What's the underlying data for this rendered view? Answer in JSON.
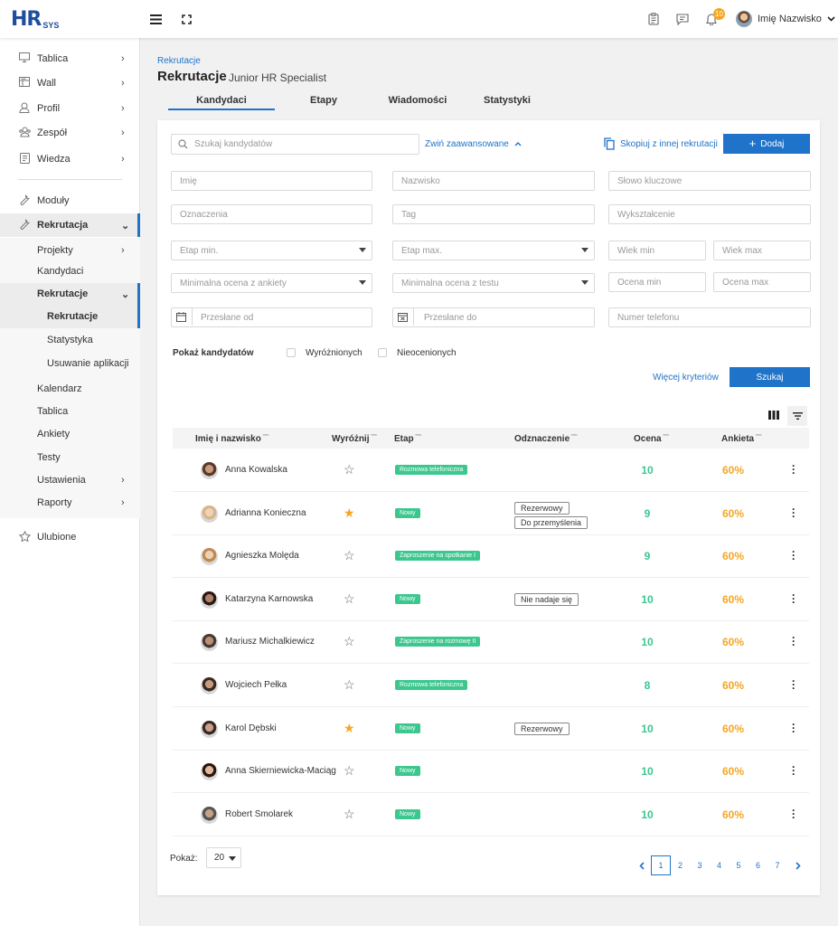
{
  "header": {
    "logo_main": "HR",
    "logo_sub": "SYS",
    "notif_count": "10",
    "user_name": "Imię Nazwisko"
  },
  "sidebar": {
    "items": [
      {
        "label": "Tablica",
        "icon": "monitor-icon"
      },
      {
        "label": "Wall",
        "icon": "wall-icon"
      },
      {
        "label": "Profil",
        "icon": "user-icon"
      },
      {
        "label": "Zespół",
        "icon": "team-icon"
      },
      {
        "label": "Wiedza",
        "icon": "book-icon"
      },
      {
        "label": "Moduły",
        "icon": "wrench-icon"
      },
      {
        "label": "Rekrutacja",
        "icon": "wrench-icon"
      },
      {
        "label": "Projekty"
      },
      {
        "label": "Kandydaci"
      },
      {
        "label": "Rekrutacje"
      },
      {
        "label": "Rekrutacje"
      },
      {
        "label": "Statystyka"
      },
      {
        "label": "Usuwanie aplikacji"
      },
      {
        "label": "Kalendarz"
      },
      {
        "label": "Tablica"
      },
      {
        "label": "Ankiety"
      },
      {
        "label": "Testy"
      },
      {
        "label": "Ustawienia"
      },
      {
        "label": "Raporty"
      },
      {
        "label": "Ulubione",
        "icon": "star-icon"
      }
    ]
  },
  "page": {
    "breadcrumb": "Rekrutacje",
    "title": "Rekrutacje",
    "subtitle": "Junior HR Specialist",
    "tabs": [
      "Kandydaci",
      "Etapy",
      "Wiadomości",
      "Statystyki"
    ]
  },
  "filters": {
    "search_placeholder": "Szukaj kandydatów",
    "collapse_link": "Zwiń zaawansowane",
    "copy_link": "Skopiuj z innej rekrutacji",
    "add_button": "Dodaj",
    "imie": "Imię",
    "nazwisko": "Nazwisko",
    "slowo": "Słowo kluczowe",
    "oznaczenia": "Oznaczenia",
    "tag": "Tag",
    "wyksztalcenie": "Wykształcenie",
    "etap_min": "Etap min.",
    "etap_max": "Etap max.",
    "wiek_min": "Wiek min",
    "wiek_max": "Wiek max",
    "ocena_ankieta": "Minimalna ocena z ankiety",
    "ocena_test": "Minimalna ocena z testu",
    "ocena_min": "Ocena min",
    "ocena_max": "Ocena max",
    "przeslane_od": "Przesłane od",
    "przeslane_do": "Przesłane do",
    "telefon": "Numer telefonu",
    "pokaz_label": "Pokaż kandydatów",
    "wyroznionych": "Wyróżnionych",
    "nieocenionych": "Nieocenionych",
    "more_link": "Więcej kryteriów",
    "search_button": "Szukaj"
  },
  "table": {
    "headers": [
      "Imię i nazwisko",
      "Wyróżnij",
      "Etap",
      "Odznaczenie",
      "Ocena",
      "Ankieta"
    ],
    "rows": [
      {
        "name": "Anna Kowalska",
        "starred": false,
        "etap": "Rozmowa telefoniczna",
        "tags": [],
        "ocena": "10",
        "ankieta": "60%"
      },
      {
        "name": "Adrianna Konieczna",
        "starred": true,
        "etap": "Nowy",
        "tags": [
          "Rezerwowy",
          "Do przemyślenia"
        ],
        "ocena": "9",
        "ankieta": "60%"
      },
      {
        "name": "Agnieszka Molęda",
        "starred": false,
        "etap": "Zaproszenie na spotkanie I",
        "tags": [],
        "ocena": "9",
        "ankieta": "60%"
      },
      {
        "name": "Katarzyna Karnowska",
        "starred": false,
        "etap": "Nowy",
        "tags": [
          "Nie nadaje się"
        ],
        "ocena": "10",
        "ankieta": "60%"
      },
      {
        "name": "Mariusz Michalkiewicz",
        "starred": false,
        "etap": "Zaproszenie na rozmowę II",
        "tags": [],
        "ocena": "10",
        "ankieta": "60%"
      },
      {
        "name": "Wojciech Pełka",
        "starred": false,
        "etap": "Rozmowa telefoniczna",
        "tags": [],
        "ocena": "8",
        "ankieta": "60%"
      },
      {
        "name": "Karol Dębski",
        "starred": true,
        "etap": "Nowy",
        "tags": [
          "Rezerwowy"
        ],
        "ocena": "10",
        "ankieta": "60%"
      },
      {
        "name": "Anna Skierniewicka-Maciąg",
        "starred": false,
        "etap": "Nowy",
        "tags": [],
        "ocena": "10",
        "ankieta": "60%"
      },
      {
        "name": "Robert Smolarek",
        "starred": false,
        "etap": "Nowy",
        "tags": [],
        "ocena": "10",
        "ankieta": "60%"
      }
    ]
  },
  "pagination": {
    "show_label": "Pokaż:",
    "page_size": "20",
    "pages": [
      "1",
      "2",
      "3",
      "4",
      "5",
      "6",
      "7"
    ],
    "current": "1"
  }
}
